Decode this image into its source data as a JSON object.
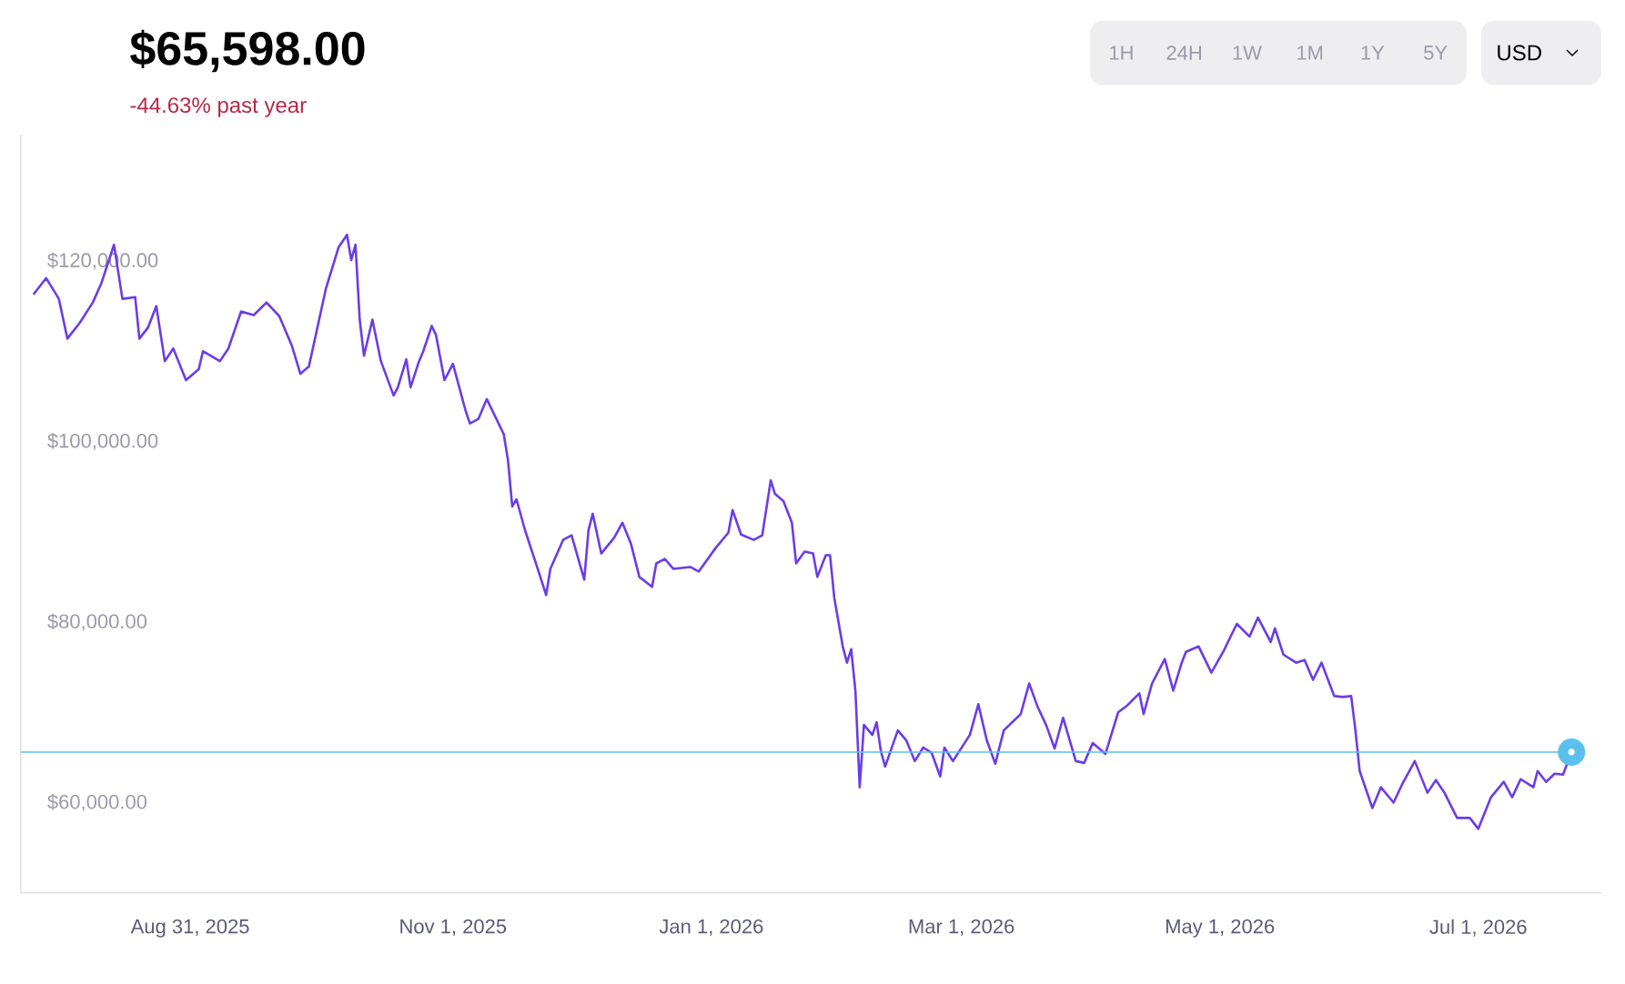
{
  "chart_data": {
    "type": "line",
    "title": "$65,598.00",
    "subtitle": "-44.63% past year",
    "annotations": [
      "1H",
      "24H",
      "1W",
      "1M",
      "1Y",
      "5Y",
      "USD"
    ],
    "x": [
      "2025-07-25",
      "2025-07-28",
      "2025-07-31",
      "2025-08-02",
      "2025-08-05",
      "2025-08-08",
      "2025-08-10",
      "2025-08-13",
      "2025-08-15",
      "2025-08-18",
      "2025-08-19",
      "2025-08-21",
      "2025-08-23",
      "2025-08-25",
      "2025-08-27",
      "2025-08-30",
      "2025-09-02",
      "2025-09-03",
      "2025-09-07",
      "2025-09-09",
      "2025-09-12",
      "2025-09-15",
      "2025-09-18",
      "2025-09-21",
      "2025-09-24",
      "2025-09-26",
      "2025-09-28",
      "2025-09-30",
      "2025-10-02",
      "2025-10-05",
      "2025-10-07",
      "2025-10-08",
      "2025-10-09",
      "2025-10-10",
      "2025-10-11",
      "2025-10-13",
      "2025-10-15",
      "2025-10-18",
      "2025-10-19",
      "2025-10-21",
      "2025-10-22",
      "2025-10-24",
      "2025-10-25",
      "2025-10-27",
      "2025-10-28",
      "2025-10-30",
      "2025-11-01",
      "2025-11-04",
      "2025-11-05",
      "2025-11-07",
      "2025-11-09",
      "2025-11-13",
      "2025-11-14",
      "2025-11-15",
      "2025-11-16",
      "2025-11-18",
      "2025-11-21",
      "2025-11-23",
      "2025-11-24",
      "2025-11-27",
      "2025-11-29",
      "2025-12-02",
      "2025-12-03",
      "2025-12-04",
      "2025-12-06",
      "2025-12-09",
      "2025-12-11",
      "2025-12-13",
      "2025-12-15",
      "2025-12-18",
      "2025-12-19",
      "2025-12-21",
      "2025-12-23",
      "2025-12-27",
      "2025-12-29",
      "2026-01-02",
      "2026-01-05",
      "2026-01-06",
      "2026-01-08",
      "2026-01-11",
      "2026-01-13",
      "2026-01-15",
      "2026-01-16",
      "2026-01-18",
      "2026-01-20",
      "2026-01-21",
      "2026-01-23",
      "2026-01-25",
      "2026-01-26",
      "2026-01-28",
      "2026-01-29",
      "2026-01-30",
      "2026-02-01",
      "2026-02-02",
      "2026-02-03",
      "2026-02-04",
      "2026-02-05",
      "2026-02-06",
      "2026-02-08",
      "2026-02-09",
      "2026-02-10",
      "2026-02-11",
      "2026-02-14",
      "2026-02-16",
      "2026-02-18",
      "2026-02-20",
      "2026-02-22",
      "2026-02-24",
      "2026-02-25",
      "2026-02-27",
      "2026-03-03",
      "2026-03-05",
      "2026-03-07",
      "2026-03-09",
      "2026-03-11",
      "2026-03-15",
      "2026-03-17",
      "2026-03-19",
      "2026-03-21",
      "2026-03-23",
      "2026-03-25",
      "2026-03-28",
      "2026-03-30",
      "2026-04-01",
      "2026-04-04",
      "2026-04-07",
      "2026-04-09",
      "2026-04-12",
      "2026-04-13",
      "2026-04-15",
      "2026-04-18",
      "2026-04-20",
      "2026-04-22",
      "2026-04-23",
      "2026-04-26",
      "2026-04-29",
      "2026-05-02",
      "2026-05-05",
      "2026-05-08",
      "2026-05-10",
      "2026-05-13",
      "2026-05-14",
      "2026-05-16",
      "2026-05-19",
      "2026-05-21",
      "2026-05-23",
      "2026-05-25",
      "2026-05-28",
      "2026-05-30",
      "2026-06-01",
      "2026-06-02",
      "2026-06-03",
      "2026-06-06",
      "2026-06-08",
      "2026-06-11",
      "2026-06-13",
      "2026-06-16",
      "2026-06-19",
      "2026-06-21",
      "2026-06-23",
      "2026-06-26",
      "2026-06-29",
      "2026-07-01",
      "2026-07-04",
      "2026-07-07",
      "2026-07-09",
      "2026-07-11",
      "2026-07-14",
      "2026-07-15",
      "2026-07-17",
      "2026-07-19",
      "2026-07-21",
      "2026-07-23"
    ],
    "series": [
      {
        "color": "#6a3de8",
        "values": [
          116300,
          118100,
          115800,
          111400,
          113200,
          115400,
          117500,
          121800,
          115800,
          116000,
          111400,
          112600,
          115000,
          108900,
          110300,
          106800,
          108000,
          110000,
          108900,
          110300,
          114400,
          114000,
          115400,
          113900,
          110600,
          107500,
          108300,
          112600,
          116900,
          121500,
          122900,
          120100,
          121800,
          113500,
          109500,
          113500,
          108900,
          105100,
          106000,
          109100,
          106000,
          108900,
          110000,
          112800,
          111800,
          106800,
          108600,
          103400,
          102000,
          102500,
          104700,
          100800,
          97900,
          92800,
          93600,
          90200,
          85900,
          83000,
          85900,
          89100,
          89600,
          84700,
          90200,
          92000,
          87600,
          89300,
          91000,
          88700,
          85000,
          83900,
          86500,
          87000,
          85900,
          86100,
          85600,
          88200,
          89900,
          92400,
          89700,
          89100,
          89600,
          95700,
          94200,
          93400,
          91000,
          86500,
          87800,
          87600,
          85000,
          87400,
          87400,
          82700,
          77300,
          75500,
          77000,
          72300,
          61700,
          68600,
          67500,
          68900,
          65700,
          64000,
          68000,
          66900,
          64600,
          66100,
          65500,
          62900,
          66100,
          64600,
          67500,
          70900,
          66900,
          64300,
          68000,
          69800,
          73200,
          70600,
          68600,
          66000,
          69400,
          64600,
          64400,
          66600,
          65400,
          70000,
          70700,
          72100,
          69800,
          73200,
          75900,
          72400,
          75500,
          76700,
          77300,
          74400,
          76900,
          79800,
          78400,
          80500,
          77800,
          79300,
          76400,
          75500,
          75800,
          73600,
          75500,
          71800,
          71700,
          71800,
          68000,
          63500,
          59400,
          61700,
          60000,
          62000,
          64600,
          61100,
          62500,
          61100,
          58300,
          58300,
          57100,
          60600,
          62300,
          60600,
          62600,
          61700,
          63500,
          62300,
          63200,
          63100,
          65600
        ]
      }
    ],
    "xlim": [
      "2025-07-22",
      "2026-07-30"
    ],
    "xticks": [
      {
        "value": "2025-08-31",
        "label": "Aug 31, 2025"
      },
      {
        "value": "2025-11-01",
        "label": "Nov 1, 2025"
      },
      {
        "value": "2026-01-01",
        "label": "Jan 1, 2026"
      },
      {
        "value": "2026-03-01",
        "label": "Mar 1, 2026"
      },
      {
        "value": "2026-05-01",
        "label": "May 1, 2026"
      },
      {
        "value": "2026-07-01",
        "label": "Jul 1, 2026"
      }
    ],
    "ylim": [
      50000,
      134000
    ],
    "yticks": [
      {
        "value": 60000,
        "label": "$60,000.00"
      },
      {
        "value": 80000,
        "label": "$80,000.00"
      },
      {
        "value": 100000,
        "label": "$100,000.00"
      },
      {
        "value": 120000,
        "label": "$120,000.00"
      }
    ],
    "ref_lines": [
      {
        "axis": "y",
        "value": 65600,
        "color": "#5bc0eb"
      }
    ],
    "marker": "none",
    "line_style": "solid"
  }
}
